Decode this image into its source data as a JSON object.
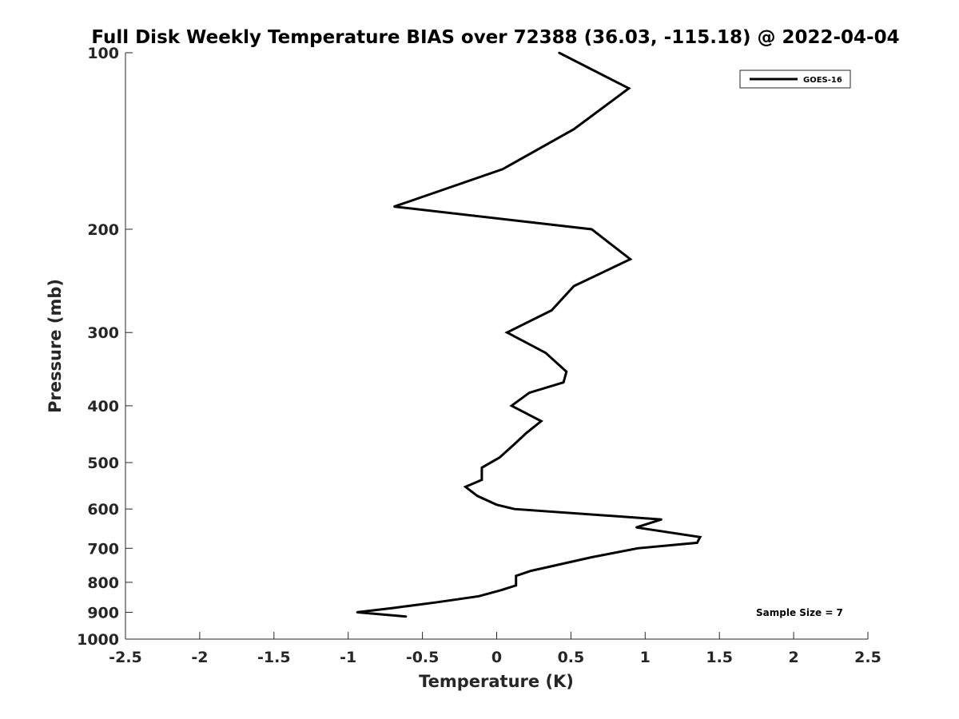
{
  "chart_data": {
    "type": "line",
    "title": "Full Disk Weekly Temperature BIAS over 72388 (36.03, -115.18) @ 2022-04-04",
    "xlabel": "Temperature (K)",
    "ylabel": "Pressure (mb)",
    "xlim": [
      -2.5,
      2.5
    ],
    "ylim": [
      100,
      1000
    ],
    "y_scale": "log",
    "y_reversed": true,
    "x_ticks": [
      -2.5,
      -2,
      -1.5,
      -1,
      -0.5,
      0,
      0.5,
      1,
      1.5,
      2,
      2.5
    ],
    "x_tick_labels": [
      "-2.5",
      "-2",
      "-1.5",
      "-1",
      "-0.5",
      "0",
      "0.5",
      "1",
      "1.5",
      "2",
      "2.5"
    ],
    "y_ticks": [
      100,
      200,
      300,
      400,
      500,
      600,
      700,
      800,
      900,
      1000
    ],
    "y_tick_labels": [
      "100",
      "200",
      "300",
      "400",
      "500",
      "600",
      "700",
      "800",
      "900",
      "1000"
    ],
    "grid": false,
    "legend_position": "top-right",
    "annotation": "Sample Size = 7",
    "series": [
      {
        "name": "GOES-16",
        "color": "#000000",
        "points": [
          {
            "x": 0.42,
            "y": 100
          },
          {
            "x": 0.89,
            "y": 115
          },
          {
            "x": 0.52,
            "y": 135
          },
          {
            "x": 0.04,
            "y": 158
          },
          {
            "x": -0.69,
            "y": 183
          },
          {
            "x": 0.64,
            "y": 200
          },
          {
            "x": 0.9,
            "y": 225
          },
          {
            "x": 0.52,
            "y": 250
          },
          {
            "x": 0.37,
            "y": 275
          },
          {
            "x": 0.07,
            "y": 300
          },
          {
            "x": 0.33,
            "y": 325
          },
          {
            "x": 0.47,
            "y": 350
          },
          {
            "x": 0.45,
            "y": 365
          },
          {
            "x": 0.22,
            "y": 380
          },
          {
            "x": 0.1,
            "y": 400
          },
          {
            "x": 0.3,
            "y": 425
          },
          {
            "x": 0.2,
            "y": 445
          },
          {
            "x": 0.12,
            "y": 465
          },
          {
            "x": 0.02,
            "y": 490
          },
          {
            "x": -0.1,
            "y": 510
          },
          {
            "x": -0.1,
            "y": 535
          },
          {
            "x": -0.21,
            "y": 550
          },
          {
            "x": -0.13,
            "y": 570
          },
          {
            "x": 0.0,
            "y": 590
          },
          {
            "x": 0.12,
            "y": 600
          },
          {
            "x": 1.11,
            "y": 625
          },
          {
            "x": 0.94,
            "y": 645
          },
          {
            "x": 1.37,
            "y": 670
          },
          {
            "x": 1.35,
            "y": 685
          },
          {
            "x": 0.95,
            "y": 700
          },
          {
            "x": 0.64,
            "y": 725
          },
          {
            "x": 0.23,
            "y": 765
          },
          {
            "x": 0.13,
            "y": 780
          },
          {
            "x": 0.13,
            "y": 810
          },
          {
            "x": 0.03,
            "y": 825
          },
          {
            "x": -0.12,
            "y": 845
          },
          {
            "x": -0.4,
            "y": 865
          },
          {
            "x": -0.7,
            "y": 885
          },
          {
            "x": -0.94,
            "y": 900
          },
          {
            "x": -0.61,
            "y": 915
          }
        ]
      }
    ]
  }
}
